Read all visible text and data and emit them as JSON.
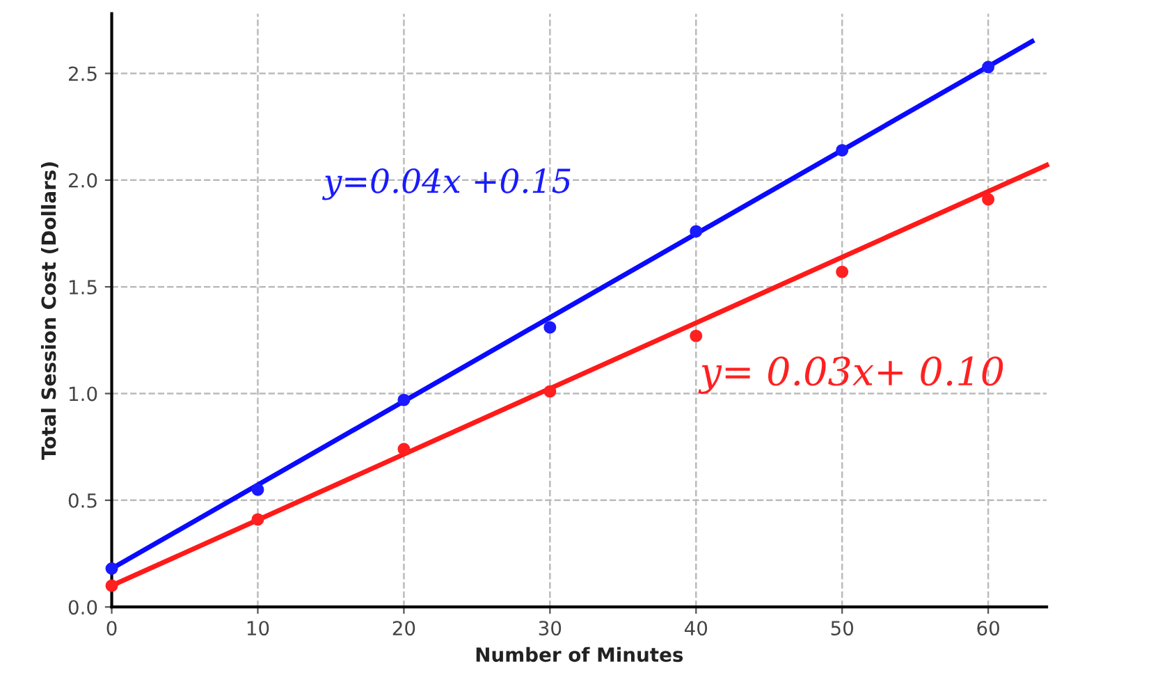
{
  "chart_data": {
    "type": "scatter",
    "xlabel": "Number of Minutes",
    "ylabel": "Total Session Cost (Dollars)",
    "xlim": [
      0,
      64
    ],
    "ylim": [
      0,
      2.78
    ],
    "xticks": [
      0,
      10,
      20,
      30,
      40,
      50,
      60
    ],
    "yticks": [
      {
        "value": 0,
        "label": "0.0"
      },
      {
        "value": 0.5,
        "label": "0.5"
      },
      {
        "value": 1,
        "label": "1.0"
      },
      {
        "value": 1.5,
        "label": "1.5"
      },
      {
        "value": 2,
        "label": "2.0"
      },
      {
        "value": 2.5,
        "label": "2.5"
      }
    ],
    "grid": true,
    "series": [
      {
        "marker": "circle",
        "color": "#1a1aff",
        "x": [
          0,
          10,
          20,
          30,
          40,
          50,
          60
        ],
        "values": [
          0.18,
          0.55,
          0.97,
          1.31,
          1.76,
          2.14,
          2.53
        ]
      },
      {
        "marker": "circle",
        "color": "#ff2020",
        "x": [
          0,
          10,
          20,
          30,
          40,
          50,
          60
        ],
        "values": [
          0.1,
          0.41,
          0.74,
          1.01,
          1.27,
          1.57,
          1.91
        ]
      },
      {
        "type": "line",
        "color": "#0a0aff",
        "x": [
          0,
          63
        ],
        "values": [
          0.18,
          2.65
        ],
        "line_style": "solid"
      },
      {
        "type": "line",
        "color": "#ff1a1a",
        "x": [
          0,
          64
        ],
        "values": [
          0.1,
          2.07
        ],
        "line_style": "solid"
      }
    ],
    "annotations": [
      "y=0.04x +0.15",
      "y= 0.03x+ 0.10"
    ]
  }
}
